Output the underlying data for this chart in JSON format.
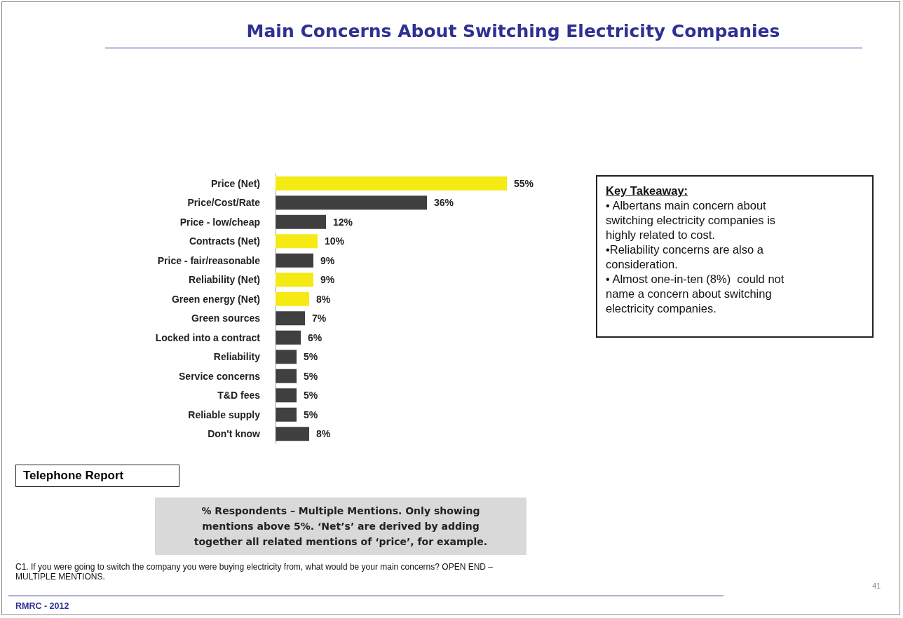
{
  "chart_data": {
    "type": "bar",
    "orientation": "horizontal",
    "title": "Main Concerns About Switching Electricity Companies",
    "categories": [
      "Price (Net)",
      "Price/Cost/Rate",
      "Price - low/cheap",
      "Contracts (Net)",
      "Price - fair/reasonable",
      "Reliability (Net)",
      "Green energy (Net)",
      "Green sources",
      "Locked into a contract",
      "Reliability",
      "Service concerns",
      "T&D fees",
      "Reliable supply",
      "Don't know"
    ],
    "values": [
      55,
      36,
      12,
      10,
      9,
      9,
      8,
      7,
      6,
      5,
      5,
      5,
      5,
      8
    ],
    "value_labels": [
      "55%",
      "36%",
      "12%",
      "10%",
      "9%",
      "9%",
      "8%",
      "7%",
      "6%",
      "5%",
      "5%",
      "5%",
      "5%",
      "8%"
    ],
    "colors": [
      "#f5ea14",
      "#404040",
      "#404040",
      "#f5ea14",
      "#404040",
      "#f5ea14",
      "#f5ea14",
      "#404040",
      "#404040",
      "#404040",
      "#404040",
      "#404040",
      "#404040",
      "#404040"
    ],
    "annotations": [
      "Key Takeaway:\n• Albertans main concern about\nswitching electricity companies is\nhighly related to cost.\n•Reliability concerns are also a\nconsideration.\n• Almost one-in-ten (8%)  could not\nname a concern about switching\nelectricity companies.",
      "Telephone Report",
      "% Respondents – Multiple Mentions. Only showing\nmentions above 5%. ‘Net’s’ are derived by adding\ntogether all related mentions of ‘price’, for example.",
      "C1. If you were going to switch the company you were buying electricity from, what would be your main concerns? OPEN END –\nMULTIPLE MENTIONS.",
      "RMRC - 2012",
      "41"
    ]
  }
}
